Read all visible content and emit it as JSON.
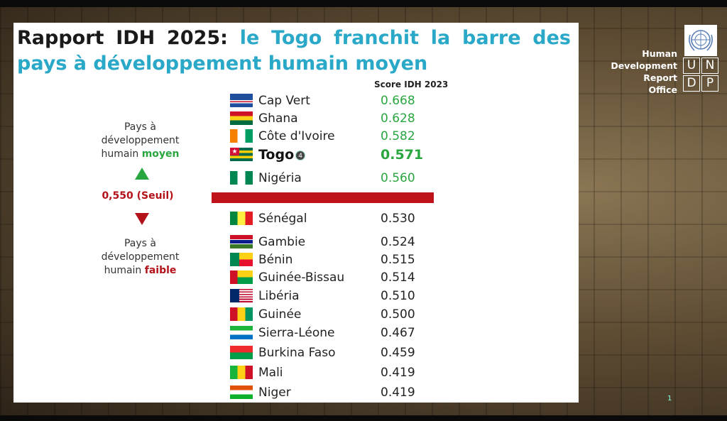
{
  "title": {
    "part1": "Rapport IDH 2025: ",
    "part2": "le Togo franchit la barre des pays à développement humain moyen"
  },
  "logo": {
    "line1": "Human",
    "line2": "Development",
    "line3": "Report",
    "line4": "Office",
    "letters": [
      "U",
      "N",
      "D",
      "P"
    ]
  },
  "chart_data": {
    "type": "table",
    "column_header": "Score IDH 2023",
    "threshold": {
      "label": "0,550 (Seuil)",
      "value": 0.55
    },
    "upper_label": {
      "line1": "Pays à",
      "line2": "développement",
      "line3a": "humain ",
      "line3b": "moyen"
    },
    "lower_label": {
      "line1": "Pays à",
      "line2": "développement",
      "line3a": "humain ",
      "line3b": "faible"
    },
    "rows": [
      {
        "country": "Cap Vert",
        "value": "0.668",
        "group": "medium"
      },
      {
        "country": "Ghana",
        "value": "0.628",
        "group": "medium"
      },
      {
        "country": "Côte d'Ivoire",
        "value": "0.582",
        "group": "medium"
      },
      {
        "country": "Togo",
        "value": "0.571",
        "group": "medium",
        "highlight": true,
        "badge": "4"
      },
      {
        "country": "Nigéria",
        "value": "0.560",
        "group": "medium"
      },
      {
        "country": "Sénégal",
        "value": "0.530",
        "group": "low"
      },
      {
        "country": "Gambie",
        "value": "0.524",
        "group": "low"
      },
      {
        "country": "Bénin",
        "value": "0.515",
        "group": "low"
      },
      {
        "country": "Guinée-Bissau",
        "value": "0.514",
        "group": "low"
      },
      {
        "country": "Libéria",
        "value": "0.510",
        "group": "low"
      },
      {
        "country": "Guinée",
        "value": "0.500",
        "group": "low"
      },
      {
        "country": "Sierra-Léone",
        "value": "0.467",
        "group": "low"
      },
      {
        "country": "Burkina Faso",
        "value": "0.459",
        "group": "low"
      },
      {
        "country": "Mali",
        "value": "0.419",
        "group": "low"
      },
      {
        "country": "Niger",
        "value": "0.419",
        "group": "low"
      }
    ]
  },
  "colors": {
    "medium": "#2aa640",
    "low": "#b3121a",
    "title_accent": "#2aa8c8"
  },
  "page_number": "1"
}
